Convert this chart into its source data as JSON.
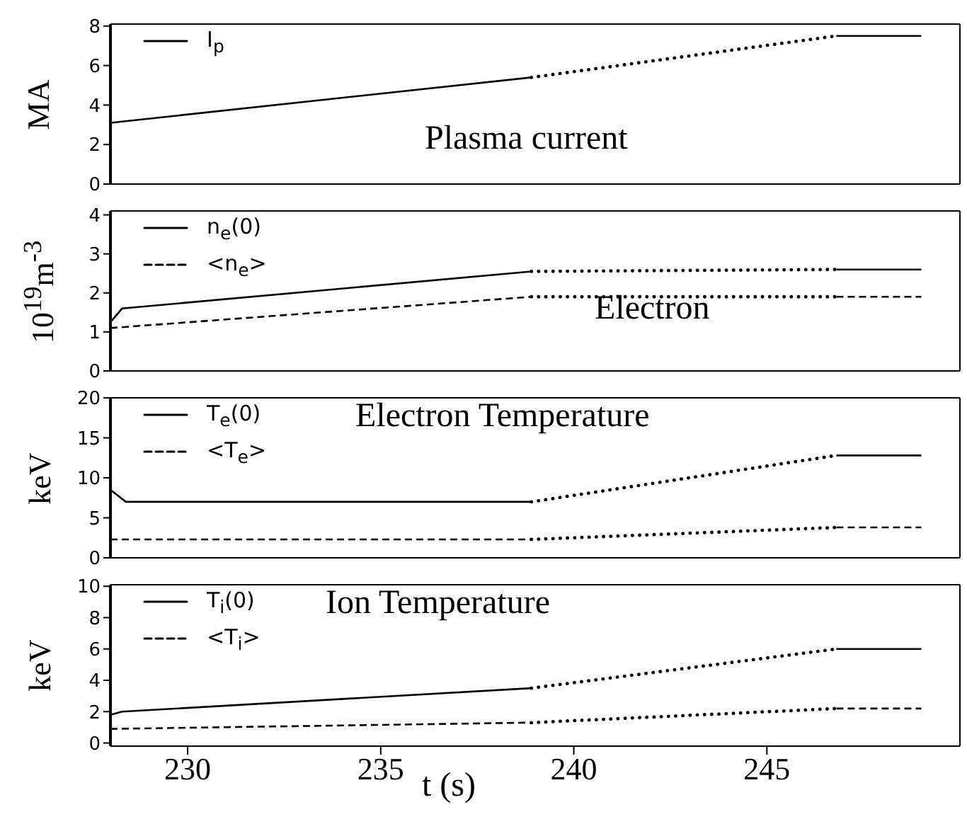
{
  "chart_data": [
    {
      "type": "line",
      "title": "Plasma current",
      "ylabel": "MA",
      "xlim": [
        228,
        250
      ],
      "xticks": [
        230,
        235,
        240,
        245
      ],
      "ylim": [
        0,
        8.1
      ],
      "yticks": [
        0,
        2,
        4,
        6,
        8
      ],
      "tick_labels": "y",
      "legend": "top left",
      "series": [
        {
          "name": "I$_{p}$",
          "color": "#000000",
          "line_style": "solid",
          "x": [
            228,
            238.9
          ],
          "values": [
            3.1,
            5.4
          ]
        },
        {
          "color": "#000000",
          "line_style": "dotted",
          "x": [
            238.9,
            246.8
          ],
          "values": [
            5.4,
            7.5
          ]
        },
        {
          "color": "#000000",
          "line_style": "solid",
          "x": [
            246.8,
            249
          ],
          "values": [
            7.5,
            7.5
          ]
        }
      ]
    },
    {
      "type": "line",
      "title": "Electron",
      "ylabel": "10$^{19}$m$^{-3}$",
      "xlim": [
        228,
        250
      ],
      "xticks": [
        230,
        235,
        240,
        245
      ],
      "ylim": [
        0,
        4.1
      ],
      "yticks": [
        0,
        1,
        2,
        3,
        4
      ],
      "tick_labels": "y",
      "legend": "top left",
      "series": [
        {
          "name": "n$_{e}$(0)",
          "color": "#000000",
          "line_style": "solid",
          "x": [
            228,
            228.3,
            238.9
          ],
          "values": [
            1.25,
            1.6,
            2.55
          ]
        },
        {
          "name": "<n$_{e}$>",
          "color": "#000000",
          "line_style": "dashed",
          "x": [
            228,
            238.9
          ],
          "values": [
            1.1,
            1.9
          ]
        },
        {
          "color": "#000000",
          "line_style": "dotted",
          "x": [
            238.9,
            246.8
          ],
          "values": [
            2.55,
            2.6
          ]
        },
        {
          "color": "#000000",
          "line_style": "dotted",
          "x": [
            238.9,
            246.8
          ],
          "values": [
            1.9,
            1.9
          ]
        },
        {
          "color": "#000000",
          "line_style": "solid",
          "x": [
            246.8,
            249
          ],
          "values": [
            2.6,
            2.6
          ]
        },
        {
          "color": "#000000",
          "line_style": "dashed",
          "x": [
            246.8,
            249
          ],
          "values": [
            1.9,
            1.9
          ]
        }
      ]
    },
    {
      "type": "line",
      "title": "Electron Temperature",
      "ylabel": "keV",
      "xlim": [
        228,
        250
      ],
      "xticks": [
        230,
        235,
        240,
        245
      ],
      "ylim": [
        0,
        20
      ],
      "yticks": [
        0,
        5,
        10,
        15,
        20
      ],
      "tick_labels": "y",
      "legend": "top left",
      "series": [
        {
          "name": "T$_{e}$(0)",
          "color": "#000000",
          "line_style": "solid",
          "x": [
            228,
            228.4,
            238.9
          ],
          "values": [
            8.5,
            7,
            7
          ]
        },
        {
          "name": "<T$_{e}$>",
          "color": "#000000",
          "line_style": "dashed",
          "x": [
            228,
            238.9
          ],
          "values": [
            2.3,
            2.3
          ]
        },
        {
          "color": "#000000",
          "line_style": "dotted",
          "x": [
            238.9,
            246.8
          ],
          "values": [
            7,
            12.8
          ]
        },
        {
          "color": "#000000",
          "line_style": "dotted",
          "x": [
            238.9,
            246.8
          ],
          "values": [
            2.3,
            3.8
          ]
        },
        {
          "color": "#000000",
          "line_style": "solid",
          "x": [
            246.8,
            249
          ],
          "values": [
            12.8,
            12.8
          ]
        },
        {
          "color": "#000000",
          "line_style": "dashed",
          "x": [
            246.8,
            249
          ],
          "values": [
            3.8,
            3.8
          ]
        }
      ]
    },
    {
      "type": "line",
      "title": "Ion Temperature",
      "ylabel": "keV",
      "xlabel": "t (s)",
      "xlim": [
        228,
        250
      ],
      "xticks": [
        230,
        235,
        240,
        245
      ],
      "ylim": [
        -0.2,
        10.1
      ],
      "yticks": [
        0,
        2,
        4,
        6,
        8,
        10
      ],
      "legend": "top left",
      "series": [
        {
          "name": "T$_{i}$(0)",
          "color": "#000000",
          "line_style": "solid",
          "x": [
            228,
            228.3,
            238.9
          ],
          "values": [
            1.8,
            2,
            3.5
          ]
        },
        {
          "name": "<T$_{i}$>",
          "color": "#000000",
          "line_style": "dashed",
          "x": [
            228,
            238.9
          ],
          "values": [
            0.9,
            1.3
          ]
        },
        {
          "color": "#000000",
          "line_style": "dotted",
          "x": [
            238.9,
            246.8
          ],
          "values": [
            3.5,
            6
          ]
        },
        {
          "color": "#000000",
          "line_style": "dotted",
          "x": [
            238.9,
            246.8
          ],
          "values": [
            1.3,
            2.2
          ]
        },
        {
          "color": "#000000",
          "line_style": "solid",
          "x": [
            246.8,
            249
          ],
          "values": [
            6,
            6
          ]
        },
        {
          "color": "#000000",
          "line_style": "dashed",
          "x": [
            246.8,
            249
          ],
          "values": [
            2.2,
            2.2
          ]
        }
      ]
    }
  ]
}
